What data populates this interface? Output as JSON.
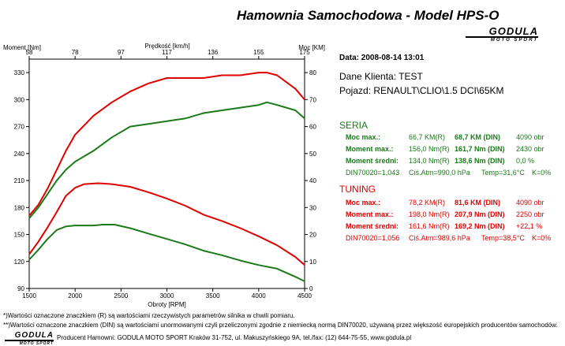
{
  "header": {
    "title": "Hamownia Samochodowa   -   Model HPS-O"
  },
  "logo": {
    "word": "GODULA",
    "sub": "MOTO SPORT"
  },
  "info": {
    "date": "Data: 2008-08-14  13:01",
    "client": "Dane Klienta: TEST",
    "vehicle": "Pojazd: RENAULT\\CLIO\\1.5 DCI\\65KM"
  },
  "seria": {
    "title": "SERIA",
    "power": {
      "label": "Moc max.:",
      "raw": "66,7 KM(R)",
      "din": "68,7 KM (DIN)",
      "rpm": "4090 obr"
    },
    "torque": {
      "label": "Moment max.:",
      "raw": "156,0 Nm(R)",
      "din": "161,7 Nm (DIN)",
      "rpm": "2430 obr"
    },
    "avg": {
      "label": "Moment średni:",
      "raw": "134,0 Nm(R)",
      "din": "138,6 Nm (DIN)",
      "rpm": "0,0 %"
    },
    "conditions": {
      "din": "DIN70020=1,043",
      "atm": "Ciś.Atm=990,0 hPa",
      "temp": "Temp=31,6°C",
      "k": "K=0%"
    }
  },
  "tuning": {
    "title": "TUNING",
    "power": {
      "label": "Moc max.:",
      "raw": "78,2 KM(R)",
      "din": "81,6 KM (DIN)",
      "rpm": "4090 obr"
    },
    "torque": {
      "label": "Moment max.:",
      "raw": "198,0 Nm(R)",
      "din": "207,9 Nm (DIN)",
      "rpm": "2250 obr"
    },
    "avg": {
      "label": "Moment średni:",
      "raw": "161,6 Nm(R)",
      "din": "169,2 Nm (DIN)",
      "rpm": "+22,1 %"
    },
    "conditions": {
      "din": "DIN70020=1,056",
      "atm": "Ciś.Atm=989,6 hPa",
      "temp": "Temp=38,5°C",
      "k": "K=0%"
    }
  },
  "footnotes": {
    "note1": "*)Wartości oznaczone znaczkiem (R) są wartościami rzeczywistych parametrów silnika w chwili pomiaru.",
    "note2": "**)Wartości oznaczone znaczkiem (DIN) są wartościami unormowanymi czyli przeliczonymi zgodnie z niemiecką normą DIN70020, używaną przez większość europejskich producentów samochodów.",
    "producer": "Producent Hamowni: GODULA MOTO SPORT Kraków 31-752, ul. Makuszyńskiego 9A, tel./fax: (12) 644-75-55, www.godula.pl"
  },
  "colors": {
    "seria": "#1a7a1a",
    "tuning": "#e00000"
  },
  "chart_data": {
    "type": "line",
    "xlabel": "Obroty [RPM]",
    "ylabel": "Moment [Nm]",
    "y2label": "Moc [KM]",
    "toplabel": "Prędkość [km/h]",
    "xlim": [
      1500,
      4500
    ],
    "ylim": [
      90,
      345
    ],
    "y2lim": [
      0,
      85
    ],
    "xticks": [
      1500,
      2000,
      2500,
      3000,
      3500,
      4000,
      4500
    ],
    "yticks": [
      90,
      120,
      150,
      180,
      210,
      240,
      270,
      300,
      330
    ],
    "y2ticks": [
      0,
      10,
      20,
      30,
      40,
      50,
      60,
      70,
      80
    ],
    "topticks": [
      "58",
      "78",
      "97",
      "117",
      "136",
      "155",
      "175"
    ],
    "grid": false,
    "series": [
      {
        "axis": "left",
        "color": "#e00000",
        "x": [
          1500,
          1600,
          1700,
          1800,
          1900,
          2000,
          2100,
          2250,
          2400,
          2600,
          2800,
          3000,
          3200,
          3400,
          3600,
          3800,
          4000,
          4200,
          4400,
          4500
        ],
        "y": [
          128,
          142,
          158,
          175,
          193,
          202,
          206,
          207,
          206,
          203,
          197,
          190,
          182,
          172,
          165,
          157,
          148,
          138,
          125,
          116
        ]
      },
      {
        "axis": "left",
        "color": "#1a7a1a",
        "x": [
          1500,
          1600,
          1700,
          1800,
          1900,
          2000,
          2100,
          2200,
          2300,
          2430,
          2600,
          2800,
          3000,
          3200,
          3400,
          3600,
          3800,
          4000,
          4200,
          4400,
          4500
        ],
        "y": [
          122,
          133,
          145,
          155,
          159,
          160,
          160,
          160,
          161,
          161,
          157,
          151,
          145,
          139,
          132,
          127,
          121,
          116,
          112,
          103,
          98
        ]
      },
      {
        "axis": "right",
        "color": "#e00000",
        "x": [
          1500,
          1600,
          1700,
          1800,
          1900,
          2000,
          2200,
          2400,
          2600,
          2800,
          3000,
          3200,
          3400,
          3600,
          3800,
          4000,
          4090,
          4200,
          4400,
          4500
        ],
        "y": [
          27,
          31,
          37,
          44,
          51,
          57,
          64,
          69,
          73,
          76,
          78,
          78,
          78,
          79,
          79,
          80,
          80,
          79,
          74,
          70
        ]
      },
      {
        "axis": "right",
        "color": "#1a7a1a",
        "x": [
          1500,
          1600,
          1700,
          1800,
          1900,
          2000,
          2200,
          2400,
          2600,
          2800,
          3000,
          3200,
          3400,
          3600,
          3800,
          4000,
          4090,
          4200,
          4400,
          4500
        ],
        "y": [
          26,
          30,
          35,
          40,
          44,
          47,
          51,
          56,
          60,
          61,
          62,
          63,
          65,
          66,
          67,
          68,
          69,
          68,
          66,
          63
        ]
      }
    ]
  }
}
